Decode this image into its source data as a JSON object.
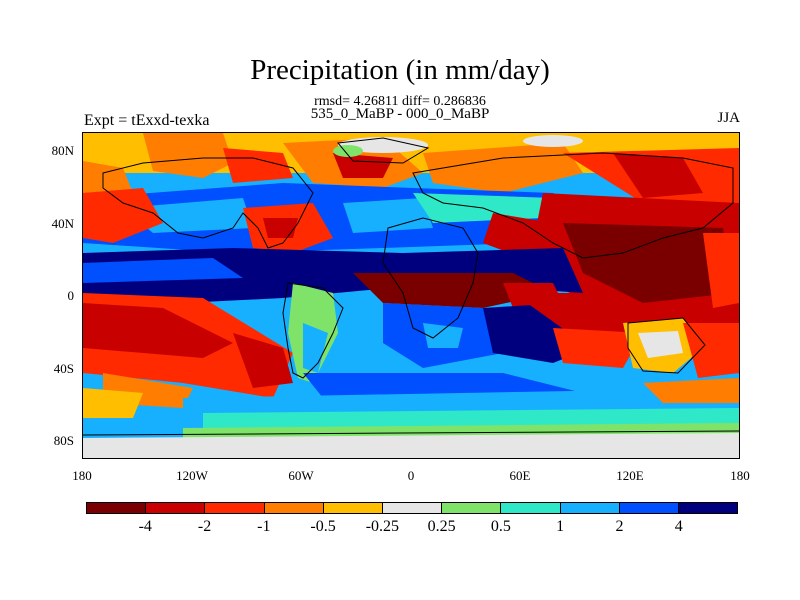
{
  "title": "Precipitation (in mm/day)",
  "stats": "rmsd= 4.26811 diff= 0.286836",
  "experiment_label": "Expt = tExxd-texka",
  "comparison_label": "535_0_MaBP - 000_0_MaBP",
  "season_label": "JJA",
  "map": {
    "lat_ticks": [
      "80N",
      "40N",
      "0",
      "40S",
      "80S"
    ],
    "lon_ticks": [
      "180",
      "120W",
      "60W",
      "0",
      "60E",
      "120E",
      "180"
    ]
  },
  "colorbar": {
    "labels": [
      "-4",
      "-2",
      "-1",
      "-0.5",
      "-0.25",
      "0.25",
      "0.5",
      "1",
      "2",
      "4"
    ],
    "colors": [
      "#7a0000",
      "#c80000",
      "#ff2a00",
      "#ff7d00",
      "#ffbf00",
      "#e6e6e6",
      "#7fe36a",
      "#2ee8c8",
      "#16b0ff",
      "#0050ff",
      "#00007f"
    ]
  }
}
